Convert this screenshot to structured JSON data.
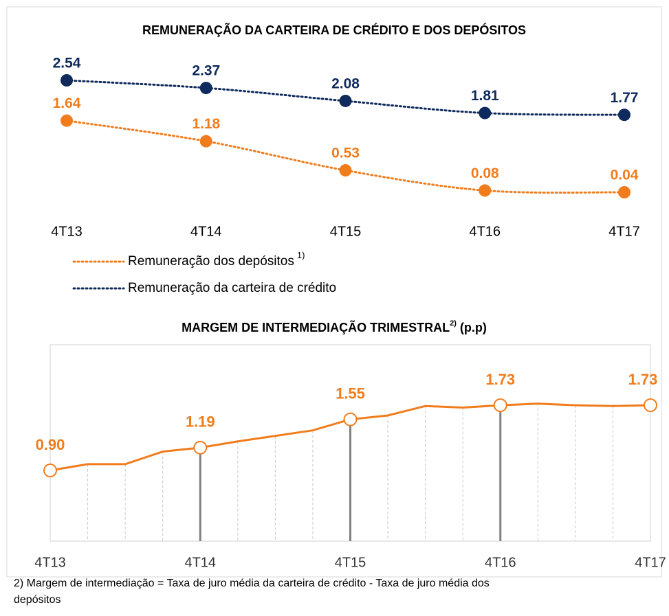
{
  "chart_data": [
    {
      "type": "line",
      "title": "REMUNERAÇÃO DA CARTEIRA DE CRÉDITO E DOS DEPÓSITOS",
      "categories": [
        "4T13",
        "4T14",
        "4T15",
        "4T16",
        "4T17"
      ],
      "series": [
        {
          "name": "Remuneração dos depósitos",
          "name_note": "1)",
          "color": "#f07c1c",
          "values": [
            1.64,
            1.18,
            0.53,
            0.08,
            0.04
          ]
        },
        {
          "name": "Remuneração da carteira de crédito",
          "color": "#0f2a5c",
          "values": [
            2.54,
            2.37,
            2.08,
            1.81,
            1.77
          ]
        }
      ]
    },
    {
      "type": "line",
      "title": "MARGEM DE INTERMEDIAÇÃO TRIMESTRAL",
      "title_note": "2)",
      "subtitle": "(p.p)",
      "color": "#f07c1c",
      "categories": [
        "4T13",
        null,
        null,
        null,
        "4T14",
        null,
        null,
        null,
        "4T15",
        null,
        null,
        null,
        "4T16",
        null,
        null,
        null,
        "4T17"
      ],
      "values": [
        0.9,
        0.98,
        0.98,
        1.14,
        1.19,
        1.27,
        1.34,
        1.41,
        1.55,
        1.6,
        1.72,
        1.7,
        1.73,
        1.75,
        1.73,
        1.72,
        1.73
      ],
      "value_labels": [
        "0.90",
        null,
        null,
        null,
        "1.19",
        null,
        null,
        null,
        "1.55",
        null,
        null,
        null,
        "1.73",
        null,
        null,
        null,
        "1.73"
      ],
      "ylim": [
        0,
        2.5
      ],
      "footnote": "2) Margem de intermediação = Taxa de juro média da carteira de crédito - Taxa de juro média dos",
      "footnote_cont": "depósitos"
    }
  ]
}
